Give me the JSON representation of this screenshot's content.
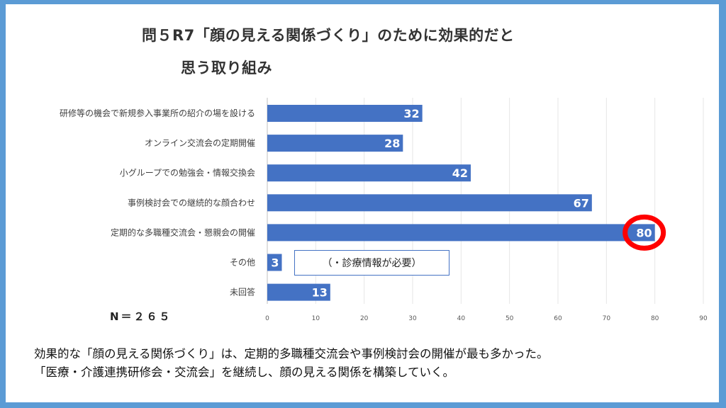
{
  "title": {
    "line1": "問５R7「顔の見える関係づくり」のために効果的だと",
    "line2": "思う取り組み"
  },
  "chart_data": {
    "type": "bar",
    "orientation": "horizontal",
    "categories": [
      "研修等の機会で新規参入事業所の紹介の場を設ける",
      "オンライン交流会の定期開催",
      "小グループでの勉強会・情報交換会",
      "事例検討会での継続的な顔合わせ",
      "定期的な多職種交流会・懇親会の開催",
      "その他",
      "未回答"
    ],
    "values": [
      32,
      28,
      42,
      67,
      80,
      3,
      13
    ],
    "xlim": [
      0,
      90
    ],
    "xticks": [
      "0",
      "10",
      "20",
      "30",
      "40",
      "50",
      "60",
      "70",
      "80",
      "90"
    ],
    "grid": true,
    "bar_color": "#4472c4",
    "highlight": {
      "category_index": 4,
      "color": "#ff0000"
    }
  },
  "sample_size": "N＝２６５",
  "note": "（・診療情報が必要）",
  "summary": {
    "line1": "効果的な「顔の見える関係づくり」は、定期的多職種交流会や事例検討会の開催が最も多かった。",
    "line2": "「医療・介護連携研修会・交流会」を継続し、顔の見える関係を構築していく。"
  }
}
